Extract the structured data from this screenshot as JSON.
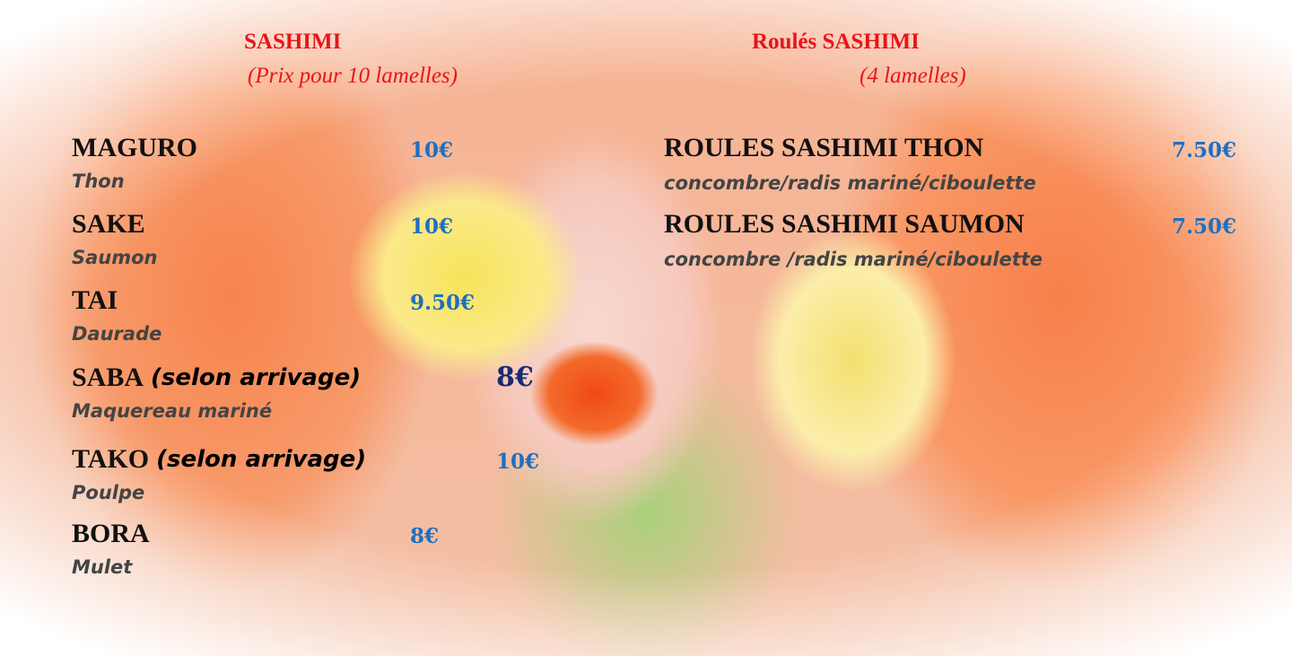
{
  "left": {
    "title": "SASHIMI",
    "subtitle": "(Prix pour 10 lamelles)",
    "items": [
      {
        "name": "MAGURO",
        "price": "10€",
        "desc": "Thon"
      },
      {
        "name": "SAKE",
        "price": "10€",
        "desc": "Saumon"
      },
      {
        "name": "TAI",
        "price": "9.50€",
        "desc": "Daurade"
      },
      {
        "name": "SABA",
        "note": "(selon arrivage)",
        "price": "8€",
        "desc": "Maquereau mariné"
      },
      {
        "name": "TAKO",
        "note": "(selon arrivage)",
        "price": "10€",
        "desc": "Poulpe"
      },
      {
        "name": "BORA",
        "price": "8€",
        "desc": "Mulet"
      }
    ]
  },
  "right": {
    "title": "Roulés SASHIMI",
    "subtitle": "(4 lamelles)",
    "items": [
      {
        "name": "ROULES SASHIMI THON",
        "price": "7.50€",
        "desc": "concombre/radis mariné/ciboulette"
      },
      {
        "name": "ROULES SASHIMI SAUMON",
        "price": "7.50€",
        "desc": "concombre /radis mariné/ciboulette"
      }
    ]
  }
}
